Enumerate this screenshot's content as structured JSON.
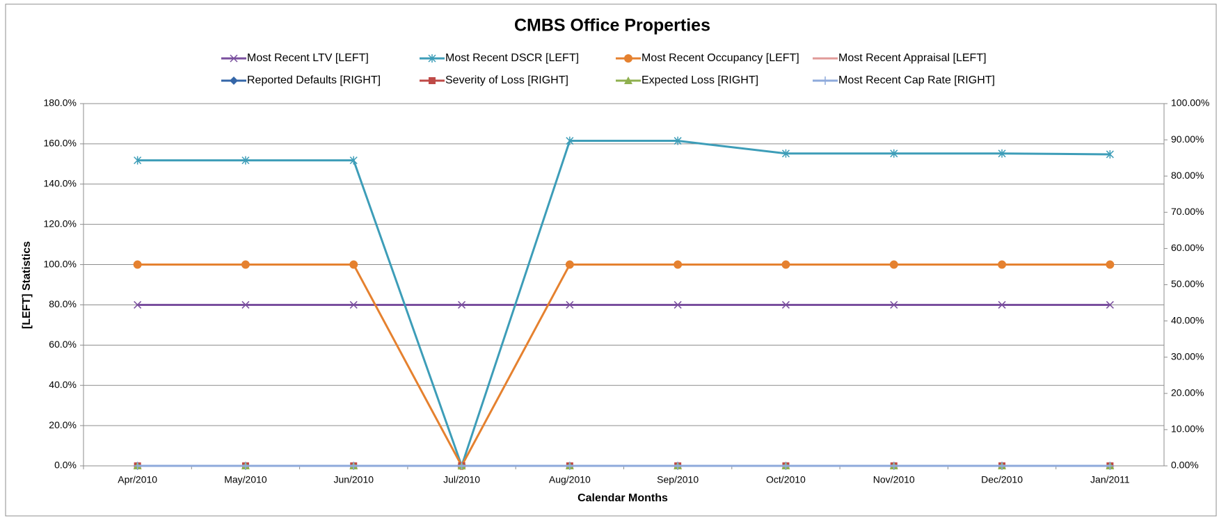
{
  "chart_data": {
    "type": "line",
    "title": "CMBS Office Properties",
    "x_label": "Calendar Months",
    "y_label": "[LEFT] Statistics",
    "categories": [
      "Apr/2010",
      "May/2010",
      "Jun/2010",
      "Jul/2010",
      "Aug/2010",
      "Sep/2010",
      "Oct/2010",
      "Nov/2010",
      "Dec/2010",
      "Jan/2011"
    ],
    "ylim": [
      0,
      180
    ],
    "yticks": [
      {
        "value": 0,
        "label": "0.0%"
      },
      {
        "value": 20,
        "label": "20.0%"
      },
      {
        "value": 40,
        "label": "40.0%"
      },
      {
        "value": 60,
        "label": "60.0%"
      },
      {
        "value": 80,
        "label": "80.0%"
      },
      {
        "value": 100,
        "label": "100.0%"
      },
      {
        "value": 120,
        "label": "120.0%"
      },
      {
        "value": 140,
        "label": "140.0%"
      },
      {
        "value": 160,
        "label": "160.0%"
      },
      {
        "value": 180,
        "label": "180.0%"
      }
    ],
    "y2lim": [
      0,
      100
    ],
    "y2ticks": [
      {
        "value": 0,
        "label": "0.00%"
      },
      {
        "value": 10,
        "label": "10.00%"
      },
      {
        "value": 20,
        "label": "20.00%"
      },
      {
        "value": 30,
        "label": "30.00%"
      },
      {
        "value": 40,
        "label": "40.00%"
      },
      {
        "value": 50,
        "label": "50.00%"
      },
      {
        "value": 60,
        "label": "60.00%"
      },
      {
        "value": 70,
        "label": "70.00%"
      },
      {
        "value": 80,
        "label": "80.00%"
      },
      {
        "value": 90,
        "label": "90.00%"
      },
      {
        "value": 100,
        "label": "100.00%"
      }
    ],
    "grid": true,
    "legend": "top",
    "series": [
      {
        "name": "Most Recent LTV [LEFT]",
        "color": "#7a4f9e",
        "marker": "x",
        "values": [
          80,
          80,
          80,
          80,
          80,
          80,
          80,
          80,
          80,
          80
        ]
      },
      {
        "name": "Most Recent DSCR [LEFT]",
        "color": "#3d9db8",
        "marker": "star",
        "values": [
          151.8,
          151.8,
          151.8,
          0,
          161.5,
          161.5,
          155.2,
          155.2,
          155.2,
          154.8
        ]
      },
      {
        "name": "Most Recent Occupancy [LEFT]",
        "color": "#e5812f",
        "marker": "circle",
        "values": [
          100,
          100,
          100,
          0,
          100,
          100,
          100,
          100,
          100,
          100
        ]
      },
      {
        "name": "Most Recent Appraisal [LEFT]",
        "color": "#e09a98",
        "marker": "none",
        "values": [
          0,
          0,
          0,
          0,
          0,
          0,
          0,
          0,
          0,
          0
        ]
      },
      {
        "name": "Reported Defaults [RIGHT]",
        "color": "#3466a8",
        "marker": "diamond",
        "axis": "y2",
        "values": [
          0,
          0,
          0,
          0,
          0,
          0,
          0,
          0,
          0,
          0
        ]
      },
      {
        "name": "Severity of Loss [RIGHT]",
        "color": "#bf4a47",
        "marker": "square",
        "axis": "y2",
        "values": [
          0,
          0,
          0,
          0,
          0,
          0,
          0,
          0,
          0,
          0
        ]
      },
      {
        "name": "Expected Loss [RIGHT]",
        "color": "#8fb04f",
        "marker": "triangle",
        "axis": "y2",
        "values": [
          0,
          0,
          0,
          0,
          0,
          0,
          0,
          0,
          0,
          0
        ]
      },
      {
        "name": "Most Recent Cap Rate [RIGHT]",
        "color": "#8eaadb",
        "marker": "plus",
        "axis": "y2",
        "values": [
          0,
          0,
          0,
          0,
          0,
          0,
          0,
          0,
          0,
          0
        ]
      }
    ]
  }
}
